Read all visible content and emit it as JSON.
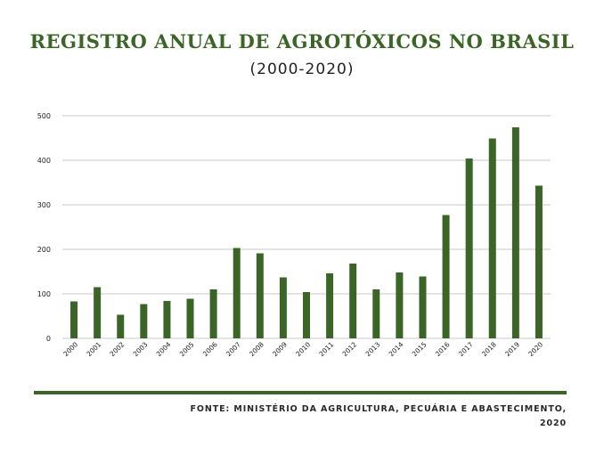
{
  "header": {
    "title": "REGISTRO ANUAL DE AGROTÓXICOS NO BRASIL",
    "subtitle": "(2000-2020)"
  },
  "footer": {
    "source_line1": "FONTE: MINISTÉRIO DA AGRICULTURA, PECUÁRIA E ABASTECIMENTO,",
    "source_line2": "2020"
  },
  "colors": {
    "bar": "#3a6526",
    "title": "#3a6526",
    "grid": "#c8c8c8"
  },
  "chart_data": {
    "type": "bar",
    "title": "REGISTRO ANUAL DE AGROTÓXICOS NO BRASIL",
    "subtitle": "(2000-2020)",
    "xlabel": "",
    "ylabel": "",
    "ylim": [
      0,
      500
    ],
    "yticks": [
      0,
      100,
      200,
      300,
      400,
      500
    ],
    "grid": true,
    "legend": "none",
    "categories": [
      "2000",
      "2001",
      "2002",
      "2003",
      "2004",
      "2005",
      "2006",
      "2007",
      "2008",
      "2009",
      "2010",
      "2011",
      "2012",
      "2013",
      "2014",
      "2015",
      "2016",
      "2017",
      "2018",
      "2019",
      "2020"
    ],
    "values": [
      83,
      115,
      53,
      77,
      84,
      89,
      110,
      203,
      191,
      137,
      104,
      146,
      168,
      110,
      148,
      139,
      277,
      404,
      449,
      474,
      343
    ]
  }
}
